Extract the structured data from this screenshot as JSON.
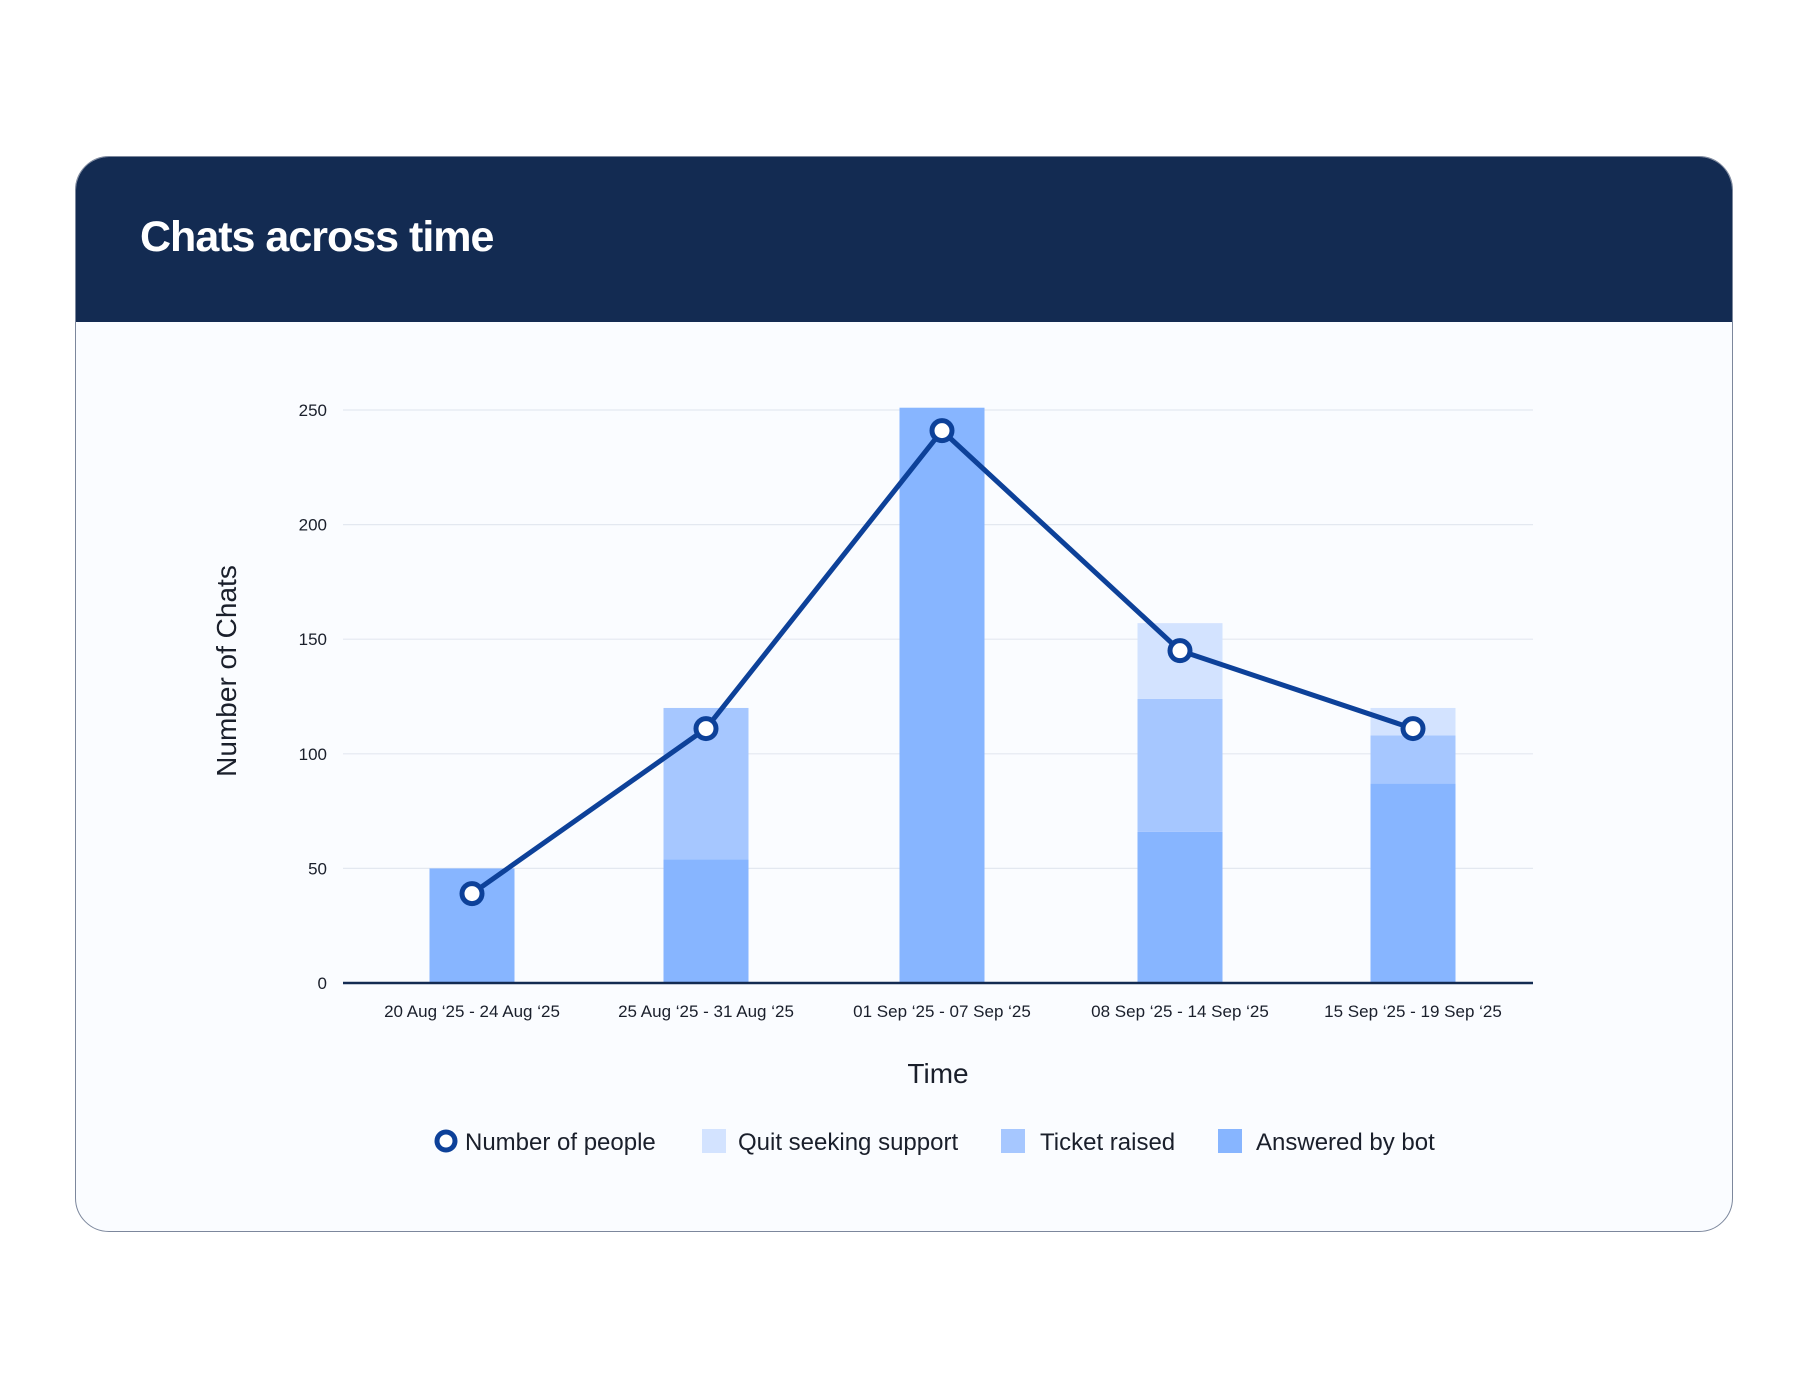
{
  "header": {
    "title": "Chats across time"
  },
  "chart_data": {
    "type": "bar",
    "stacked": true,
    "categories": [
      "20 Aug ‘25 - 24 Aug ‘25",
      "25 Aug ‘25 - 31 Aug ‘25",
      "01  Sep ‘25 - 07 Sep ‘25",
      "08 Sep ‘25 - 14 Sep ‘25",
      "15 Sep ‘25 - 19 Sep ‘25"
    ],
    "series": [
      {
        "name": "Answered by bot",
        "type": "bar",
        "color": "#87b5ff",
        "values": [
          50,
          54,
          251,
          66,
          87
        ]
      },
      {
        "name": "Ticket raised",
        "type": "bar",
        "color": "#a6c7ff",
        "values": [
          0,
          66,
          0,
          58,
          21
        ]
      },
      {
        "name": "Quit seeking support",
        "type": "bar",
        "color": "#d3e3ff",
        "values": [
          0,
          0,
          0,
          33,
          12
        ]
      },
      {
        "name": "Number of people",
        "type": "line",
        "color": "#0d4199",
        "values": [
          39,
          111,
          241,
          145,
          111
        ]
      }
    ],
    "legend": [
      "Number of people",
      "Quit seeking support",
      "Ticket raised",
      "Answered by bot"
    ],
    "legend_position": "bottom",
    "xlabel": "Time",
    "ylabel": "Number of Chats",
    "yticks": [
      0,
      50,
      100,
      150,
      200,
      250
    ],
    "ylim": [
      0,
      250
    ],
    "grid": true
  }
}
